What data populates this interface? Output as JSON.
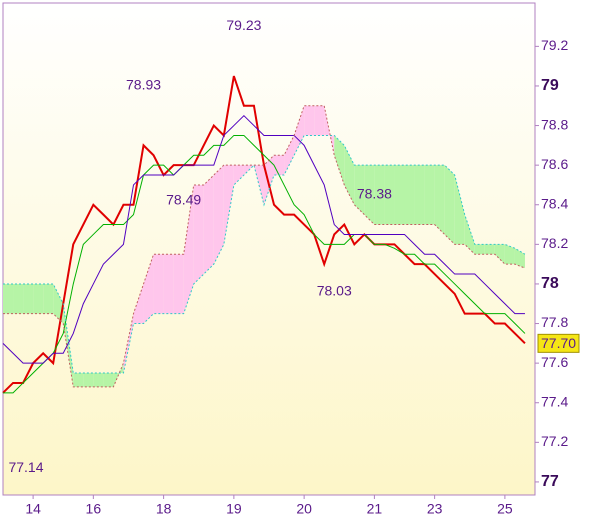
{
  "chart_data": {
    "type": "ichimoku",
    "x": [
      0,
      1,
      2,
      3,
      4,
      5,
      6,
      7,
      8,
      9,
      10,
      11,
      12,
      13,
      14,
      15,
      16,
      17,
      18,
      19,
      20,
      21,
      22,
      23,
      24,
      25,
      26,
      27,
      28,
      29,
      30,
      31,
      32,
      33,
      34,
      35,
      36,
      37,
      38,
      39,
      40,
      41,
      42,
      43,
      44,
      45,
      46,
      47,
      48,
      49,
      50,
      51,
      52
    ],
    "xlim": [
      0,
      53
    ],
    "xticks": [
      {
        "value": 3,
        "label": "14"
      },
      {
        "value": 9,
        "label": "16"
      },
      {
        "value": 16,
        "label": "18"
      },
      {
        "value": 23,
        "label": "19"
      },
      {
        "value": 30,
        "label": "20"
      },
      {
        "value": 37,
        "label": "21"
      },
      {
        "value": 43,
        "label": "23"
      },
      {
        "value": 50,
        "label": "25"
      }
    ],
    "ylim": [
      76.934,
      79.419
    ],
    "yticks": [
      77,
      77.2,
      77.4,
      77.6,
      77.8,
      78,
      78.2,
      78.4,
      78.6,
      78.8,
      79,
      79.2
    ],
    "bold_ticks": [
      77,
      78,
      79
    ],
    "series": [
      {
        "name": "price",
        "color": "#e00000",
        "values": [
          77.45,
          77.5,
          77.5,
          77.6,
          77.65,
          77.6,
          77.9,
          78.2,
          78.3,
          78.4,
          78.35,
          78.3,
          78.4,
          78.4,
          78.7,
          78.65,
          78.55,
          78.6,
          78.6,
          78.6,
          78.7,
          78.8,
          78.75,
          79.05,
          78.9,
          78.9,
          78.6,
          78.4,
          78.35,
          78.35,
          78.3,
          78.25,
          78.1,
          78.25,
          78.3,
          78.2,
          78.25,
          78.2,
          78.2,
          78.2,
          78.15,
          78.1,
          78.1,
          78.05,
          78.0,
          77.95,
          77.85,
          77.85,
          77.85,
          77.8,
          77.8,
          77.75,
          77.7
        ]
      },
      {
        "name": "tenkan",
        "color": "#00b000",
        "values": [
          77.45,
          77.45,
          77.5,
          77.55,
          77.6,
          77.65,
          77.75,
          78.0,
          78.2,
          78.25,
          78.3,
          78.3,
          78.3,
          78.35,
          78.55,
          78.6,
          78.6,
          78.55,
          78.6,
          78.65,
          78.65,
          78.7,
          78.7,
          78.75,
          78.75,
          78.7,
          78.65,
          78.6,
          78.5,
          78.4,
          78.35,
          78.25,
          78.2,
          78.2,
          78.2,
          78.25,
          78.25,
          78.2,
          78.2,
          78.18,
          78.15,
          78.15,
          78.1,
          78.1,
          78.05,
          78.0,
          77.95,
          77.9,
          77.85,
          77.85,
          77.85,
          77.8,
          77.75
        ]
      },
      {
        "name": "kijun",
        "color": "#5000c0",
        "values": [
          77.7,
          77.65,
          77.6,
          77.6,
          77.6,
          77.65,
          77.65,
          77.75,
          77.9,
          78.0,
          78.1,
          78.15,
          78.2,
          78.5,
          78.55,
          78.55,
          78.55,
          78.55,
          78.6,
          78.6,
          78.6,
          78.6,
          78.75,
          78.8,
          78.85,
          78.8,
          78.75,
          78.75,
          78.75,
          78.75,
          78.7,
          78.6,
          78.5,
          78.3,
          78.25,
          78.25,
          78.25,
          78.25,
          78.25,
          78.25,
          78.25,
          78.2,
          78.15,
          78.15,
          78.1,
          78.05,
          78.05,
          78.05,
          78.0,
          77.95,
          77.9,
          77.85,
          77.85
        ]
      },
      {
        "name": "span_a",
        "color": "#30c8c8",
        "values": [
          78.0,
          78.0,
          78.0,
          78.0,
          78.0,
          78.0,
          77.9,
          77.55,
          77.55,
          77.55,
          77.55,
          77.55,
          77.55,
          77.8,
          77.8,
          77.85,
          77.85,
          77.85,
          77.85,
          78.0,
          78.05,
          78.1,
          78.2,
          78.5,
          78.55,
          78.6,
          78.4,
          78.55,
          78.55,
          78.65,
          78.75,
          78.75,
          78.75,
          78.75,
          78.7,
          78.6,
          78.6,
          78.6,
          78.6,
          78.6,
          78.6,
          78.6,
          78.6,
          78.6,
          78.6,
          78.55,
          78.35,
          78.2,
          78.2,
          78.2,
          78.2,
          78.18,
          78.15
        ]
      },
      {
        "name": "span_b",
        "color": "#c06060",
        "values": [
          77.85,
          77.85,
          77.85,
          77.85,
          77.85,
          77.85,
          77.8,
          77.48,
          77.48,
          77.48,
          77.48,
          77.48,
          77.6,
          77.85,
          78.0,
          78.15,
          78.15,
          78.15,
          78.15,
          78.5,
          78.5,
          78.55,
          78.6,
          78.6,
          78.6,
          78.6,
          78.6,
          78.65,
          78.65,
          78.75,
          78.9,
          78.9,
          78.9,
          78.65,
          78.5,
          78.4,
          78.35,
          78.3,
          78.3,
          78.3,
          78.3,
          78.3,
          78.3,
          78.3,
          78.25,
          78.2,
          78.2,
          78.15,
          78.15,
          78.15,
          78.1,
          78.1,
          78.08
        ]
      }
    ],
    "cloud_colors": {
      "up": "#b6f4a6",
      "down": "#ffc6ec"
    },
    "annotations": [
      {
        "label": "77.14",
        "x": 0,
        "y": 77.14,
        "place": "below"
      },
      {
        "label": "78.93",
        "x": 14,
        "y": 78.93,
        "place": "above"
      },
      {
        "label": "79.23",
        "x": 24,
        "y": 79.23,
        "place": "above"
      },
      {
        "label": "78.49",
        "x": 18,
        "y": 78.49,
        "place": "below"
      },
      {
        "label": "78.38",
        "x": 37,
        "y": 78.38,
        "place": "above"
      },
      {
        "label": "78.03",
        "x": 33,
        "y": 78.03,
        "place": "below"
      }
    ],
    "last_price": {
      "value": 77.7,
      "label": "77.70"
    }
  }
}
